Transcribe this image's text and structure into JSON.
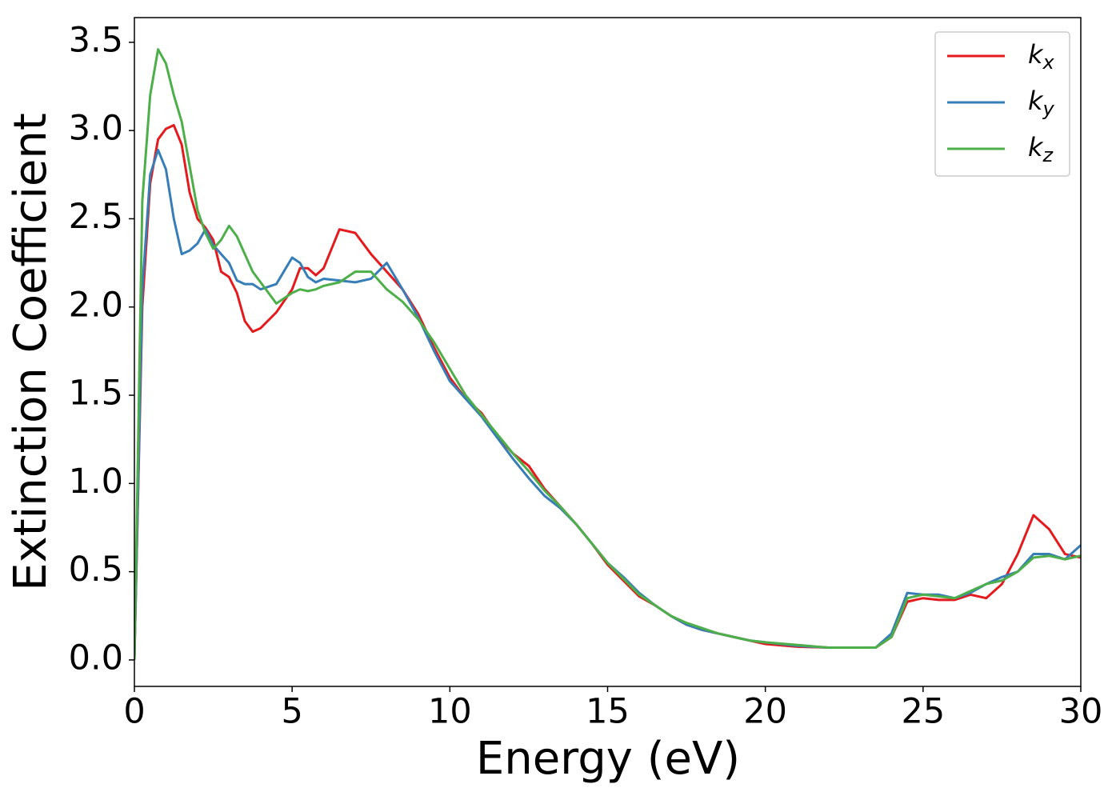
{
  "chart_data": {
    "type": "line",
    "xlabel": "Energy (eV)",
    "ylabel": "Extinction Coefficient",
    "x": [
      0,
      0.25,
      0.5,
      0.75,
      1,
      1.25,
      1.5,
      1.75,
      2,
      2.25,
      2.5,
      2.75,
      3,
      3.25,
      3.5,
      3.75,
      4,
      4.5,
      5,
      5.25,
      5.5,
      5.75,
      6,
      6.5,
      7,
      7.5,
      8,
      8.5,
      9,
      9.5,
      10,
      10.5,
      11,
      11.5,
      12,
      12.5,
      13,
      13.5,
      14,
      14.5,
      15,
      15.5,
      16,
      16.5,
      17,
      17.5,
      18,
      18.5,
      19,
      19.5,
      20,
      21,
      22,
      23,
      23.5,
      24,
      24.5,
      25,
      25.5,
      26,
      26.5,
      27,
      27.5,
      28,
      28.5,
      29,
      29.5,
      30
    ],
    "series": [
      {
        "name": "kx",
        "color": "#e41a1c",
        "values": [
          0,
          2.0,
          2.7,
          2.95,
          3.01,
          3.03,
          2.92,
          2.65,
          2.5,
          2.45,
          2.38,
          2.2,
          2.17,
          2.08,
          1.92,
          1.86,
          1.88,
          1.97,
          2.1,
          2.22,
          2.22,
          2.18,
          2.22,
          2.44,
          2.42,
          2.3,
          2.2,
          2.1,
          1.96,
          1.77,
          1.6,
          1.48,
          1.4,
          1.27,
          1.17,
          1.1,
          0.97,
          0.87,
          0.77,
          0.66,
          0.54,
          0.45,
          0.36,
          0.31,
          0.25,
          0.2,
          0.17,
          0.15,
          0.13,
          0.11,
          0.09,
          0.075,
          0.07,
          0.07,
          0.07,
          0.13,
          0.33,
          0.35,
          0.34,
          0.34,
          0.37,
          0.35,
          0.43,
          0.6,
          0.82,
          0.74,
          0.6,
          0.58
        ]
      },
      {
        "name": "ky",
        "color": "#377eb8",
        "values": [
          0,
          2.1,
          2.75,
          2.89,
          2.78,
          2.5,
          2.3,
          2.32,
          2.36,
          2.44,
          2.35,
          2.3,
          2.25,
          2.15,
          2.13,
          2.13,
          2.1,
          2.13,
          2.28,
          2.25,
          2.17,
          2.14,
          2.16,
          2.15,
          2.14,
          2.16,
          2.25,
          2.1,
          1.94,
          1.75,
          1.58,
          1.48,
          1.38,
          1.26,
          1.14,
          1.03,
          0.93,
          0.86,
          0.77,
          0.66,
          0.55,
          0.47,
          0.38,
          0.31,
          0.25,
          0.2,
          0.17,
          0.15,
          0.13,
          0.11,
          0.1,
          0.08,
          0.07,
          0.07,
          0.07,
          0.15,
          0.38,
          0.37,
          0.37,
          0.35,
          0.38,
          0.43,
          0.47,
          0.5,
          0.6,
          0.6,
          0.57,
          0.65
        ]
      },
      {
        "name": "kz",
        "color": "#4daf4a",
        "values": [
          0,
          2.6,
          3.2,
          3.46,
          3.38,
          3.2,
          3.05,
          2.8,
          2.55,
          2.42,
          2.33,
          2.38,
          2.46,
          2.4,
          2.3,
          2.2,
          2.14,
          2.02,
          2.08,
          2.1,
          2.09,
          2.1,
          2.12,
          2.14,
          2.2,
          2.2,
          2.1,
          2.03,
          1.93,
          1.8,
          1.65,
          1.5,
          1.39,
          1.28,
          1.17,
          1.07,
          0.96,
          0.87,
          0.77,
          0.66,
          0.55,
          0.46,
          0.37,
          0.31,
          0.25,
          0.21,
          0.18,
          0.15,
          0.13,
          0.11,
          0.1,
          0.085,
          0.07,
          0.07,
          0.07,
          0.13,
          0.35,
          0.37,
          0.36,
          0.35,
          0.39,
          0.43,
          0.45,
          0.5,
          0.58,
          0.59,
          0.57,
          0.59
        ]
      }
    ],
    "xlim": [
      0,
      30
    ],
    "xticks": [
      0,
      5,
      10,
      15,
      20,
      25,
      30
    ],
    "ylim": [
      -0.15,
      3.64
    ],
    "yticks": [
      {
        "value": 0,
        "label": "0.0"
      },
      0.5,
      {
        "value": 1,
        "label": "1.0"
      },
      1.5,
      {
        "value": 2,
        "label": "2.0"
      },
      2.5,
      {
        "value": 3,
        "label": "3.0"
      },
      3.5
    ],
    "legend": "upper right"
  }
}
